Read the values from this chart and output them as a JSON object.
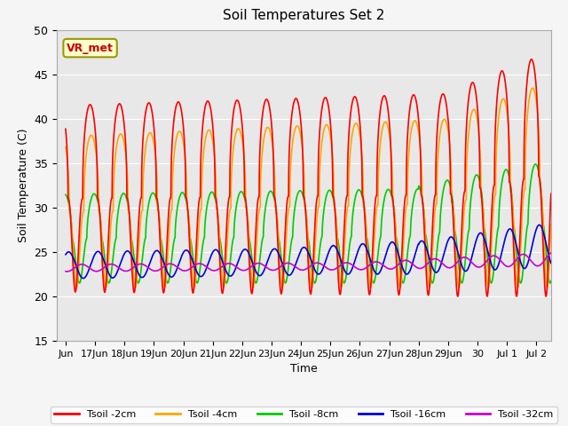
{
  "title": "Soil Temperatures Set 2",
  "xlabel": "Time",
  "ylabel": "Soil Temperature (C)",
  "ylim": [
    15,
    50
  ],
  "xlim_days": [
    -0.3,
    16.5
  ],
  "annotation": "VR_met",
  "fig_bg": "#f5f5f5",
  "plot_bg": "#e8e8e8",
  "series": {
    "Tsoil -2cm": {
      "color": "#ff0000",
      "lw": 1.2
    },
    "Tsoil -4cm": {
      "color": "#ffa500",
      "lw": 1.2
    },
    "Tsoil -8cm": {
      "color": "#00cc00",
      "lw": 1.2
    },
    "Tsoil -16cm": {
      "color": "#0000dd",
      "lw": 1.2
    },
    "Tsoil -32cm": {
      "color": "#cc00cc",
      "lw": 1.2
    }
  },
  "tick_labels": [
    "Jun",
    "17Jun",
    "18Jun",
    "19Jun",
    "20Jun",
    "21Jun",
    "22Jun",
    "23Jun",
    "24Jun",
    "25Jun",
    "26Jun",
    "27Jun",
    "28Jun",
    "29Jun",
    "30",
    "Jul 1",
    "Jul 2"
  ],
  "tick_positions": [
    0,
    1,
    2,
    3,
    4,
    5,
    6,
    7,
    8,
    9,
    10,
    11,
    12,
    13,
    14,
    15,
    16
  ]
}
